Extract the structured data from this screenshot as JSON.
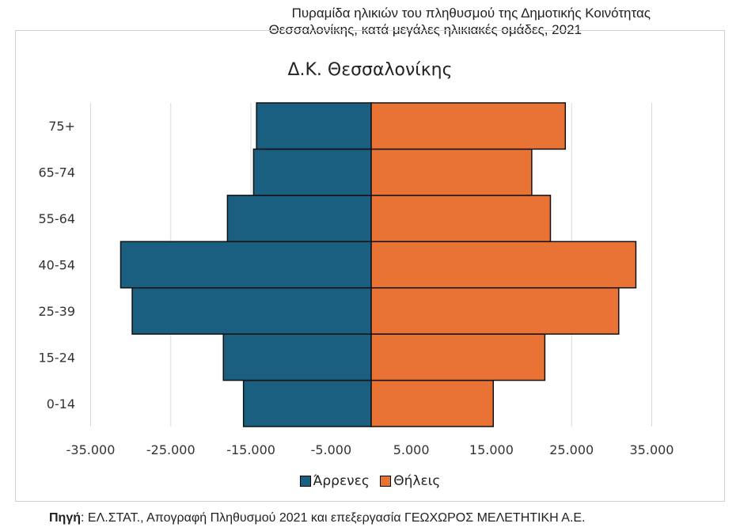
{
  "header": {
    "title_line1": "Πυραμίδα ηλικιών του πληθυσμού της Δημοτικής Κοινότητας",
    "title_line2": "Θεσσαλονίκης, κατά μεγάλες ηλικιακές ομάδες, 2021"
  },
  "chart_data": {
    "type": "bar",
    "orientation": "horizontal-population-pyramid",
    "title": "Δ.Κ. Θεσσαλονίκης",
    "categories": [
      "0-14",
      "15-24",
      "25-39",
      "40-54",
      "55-64",
      "65-74",
      "75+"
    ],
    "series": [
      {
        "name": "Άρρενες",
        "color": "#1a5e80",
        "values": [
          -15930,
          -18440,
          -29810,
          -31250,
          -17930,
          -14670,
          -14300
        ]
      },
      {
        "name": "Θήλεις",
        "color": "#e87334",
        "values": [
          15230,
          21660,
          30880,
          33020,
          22360,
          20030,
          24220
        ]
      }
    ],
    "xlim": [
      -35000,
      35000
    ],
    "xticks": [
      -35000,
      -25000,
      -15000,
      -5000,
      5000,
      15000,
      25000,
      35000
    ],
    "xtick_labels": [
      "-35.000",
      "-25.000",
      "-15.000",
      "-5.000",
      "5.000",
      "15.000",
      "25.000",
      "35.000"
    ],
    "grid": "vertical",
    "legend": "bottom"
  },
  "source": {
    "label": "Πηγή",
    "text": ": ΕΛ.ΣΤΑΤ., Απογραφή Πληθυσμού 2021 και επεξεργασία ΓΕΩΧΩΡΟΣ ΜΕΛΕΤΗΤΙΚΗ Α.Ε."
  }
}
